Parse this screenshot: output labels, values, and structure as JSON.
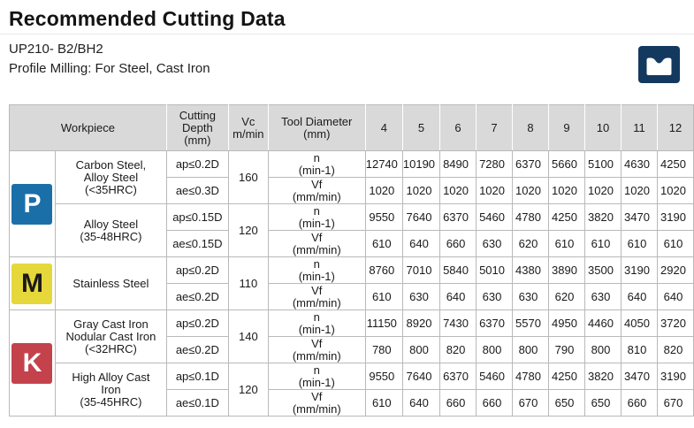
{
  "page": {
    "title": "Recommended Cutting Data",
    "product": "UP210- B2/BH2",
    "application": "Profile Milling:   For Steel, Cast Iron"
  },
  "corner_icon": {
    "name": "profile-milling-icon",
    "bg": "#14395e",
    "shape_color": "#ffffff"
  },
  "table": {
    "header": {
      "workpiece": "Workpiece",
      "cutting_depth_lines": [
        "Cutting",
        "Depth",
        "(mm)"
      ],
      "vc_lines": [
        "Vc",
        "m/min"
      ],
      "tool_diameter_lines": [
        "Tool Diameter",
        "(mm)"
      ]
    },
    "diameters": [
      "4",
      "5",
      "6",
      "7",
      "8",
      "9",
      "10",
      "11",
      "12"
    ],
    "class_colors": {
      "P": {
        "bg": "#1b6fa9",
        "fg": "#ffffff"
      },
      "M": {
        "bg": "#e6d73a",
        "fg": "#1a1a1a"
      },
      "K": {
        "bg": "#c4424c",
        "fg": "#ffffff"
      }
    },
    "groups": [
      {
        "class_letter": "P",
        "workpieces": [
          {
            "name_lines": [
              "Carbon Steel,",
              "Alloy Steel",
              "(<35HRC)"
            ],
            "vc": "160",
            "rows": [
              {
                "depth": "ap≤0.2D",
                "param_lines": [
                  "n",
                  "(min-1)"
                ],
                "values": [
                  "12740",
                  "10190",
                  "8490",
                  "7280",
                  "6370",
                  "5660",
                  "5100",
                  "4630",
                  "4250"
                ]
              },
              {
                "depth": "ae≤0.3D",
                "param_lines": [
                  "Vf",
                  "(mm/min)"
                ],
                "values": [
                  "1020",
                  "1020",
                  "1020",
                  "1020",
                  "1020",
                  "1020",
                  "1020",
                  "1020",
                  "1020"
                ]
              }
            ]
          },
          {
            "name_lines": [
              "Alloy Steel",
              "(35-48HRC)"
            ],
            "vc": "120",
            "rows": [
              {
                "depth": "ap≤0.15D",
                "param_lines": [
                  "n",
                  "(min-1)"
                ],
                "values": [
                  "9550",
                  "7640",
                  "6370",
                  "5460",
                  "4780",
                  "4250",
                  "3820",
                  "3470",
                  "3190"
                ]
              },
              {
                "depth": "ae≤0.15D",
                "param_lines": [
                  "Vf",
                  "(mm/min)"
                ],
                "values": [
                  "610",
                  "640",
                  "660",
                  "630",
                  "620",
                  "610",
                  "610",
                  "610",
                  "610"
                ]
              }
            ]
          }
        ]
      },
      {
        "class_letter": "M",
        "workpieces": [
          {
            "name_lines": [
              "Stainless Steel"
            ],
            "vc": "110",
            "rows": [
              {
                "depth": "ap≤0.2D",
                "param_lines": [
                  "n",
                  "(min-1)"
                ],
                "values": [
                  "8760",
                  "7010",
                  "5840",
                  "5010",
                  "4380",
                  "3890",
                  "3500",
                  "3190",
                  "2920"
                ]
              },
              {
                "depth": "ae≤0.2D",
                "param_lines": [
                  "Vf",
                  "(mm/min)"
                ],
                "values": [
                  "610",
                  "630",
                  "640",
                  "630",
                  "630",
                  "620",
                  "630",
                  "640",
                  "640"
                ]
              }
            ]
          }
        ]
      },
      {
        "class_letter": "K",
        "workpieces": [
          {
            "name_lines": [
              "Gray Cast Iron",
              "Nodular Cast Iron",
              "(<32HRC)"
            ],
            "vc": "140",
            "rows": [
              {
                "depth": "ap≤0.2D",
                "param_lines": [
                  "n",
                  "(min-1)"
                ],
                "values": [
                  "11150",
                  "8920",
                  "7430",
                  "6370",
                  "5570",
                  "4950",
                  "4460",
                  "4050",
                  "3720"
                ]
              },
              {
                "depth": "ae≤0.2D",
                "param_lines": [
                  "Vf",
                  "(mm/min)"
                ],
                "values": [
                  "780",
                  "800",
                  "820",
                  "800",
                  "800",
                  "790",
                  "800",
                  "810",
                  "820"
                ]
              }
            ]
          },
          {
            "name_lines": [
              "High Alloy Cast",
              "Iron",
              "(35-45HRC)"
            ],
            "vc": "120",
            "rows": [
              {
                "depth": "ap≤0.1D",
                "param_lines": [
                  "n",
                  "(min-1)"
                ],
                "values": [
                  "9550",
                  "7640",
                  "6370",
                  "5460",
                  "4780",
                  "4250",
                  "3820",
                  "3470",
                  "3190"
                ]
              },
              {
                "depth": "ae≤0.1D",
                "param_lines": [
                  "Vf",
                  "(mm/min)"
                ],
                "values": [
                  "610",
                  "640",
                  "660",
                  "660",
                  "670",
                  "650",
                  "650",
                  "660",
                  "670"
                ]
              }
            ]
          }
        ]
      }
    ]
  }
}
